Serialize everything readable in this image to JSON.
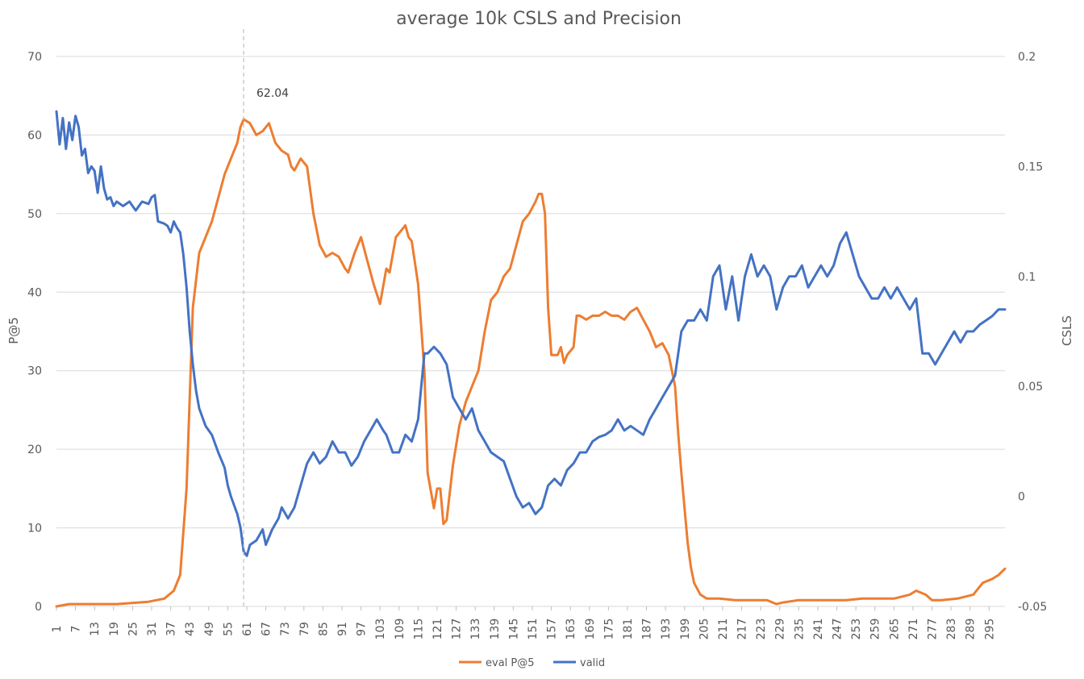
{
  "chart_data": {
    "type": "line",
    "title": "average 10k CSLS and Precision",
    "ylabel_left": "P@5",
    "ylabel_right": "CSLS",
    "xlabel": "",
    "ylim_left": [
      0,
      70
    ],
    "ylim_right": [
      -0.05,
      0.2
    ],
    "yticks_left": [
      0,
      10,
      20,
      30,
      40,
      50,
      60,
      70
    ],
    "yticks_right": [
      "-0.05",
      "0",
      "0.05",
      "0.1",
      "0.15",
      "0.2"
    ],
    "yticks_right_values": [
      -0.05,
      0,
      0.05,
      0.1,
      0.15,
      0.2
    ],
    "x_range": [
      1,
      300
    ],
    "xticks": [
      "1",
      "7",
      "13",
      "19",
      "25",
      "31",
      "37",
      "43",
      "49",
      "55",
      "61",
      "67",
      "73",
      "79",
      "85",
      "91",
      "97",
      "103",
      "109",
      "115",
      "121",
      "127",
      "133",
      "139",
      "145",
      "151",
      "157",
      "163",
      "169",
      "175",
      "181",
      "187",
      "193",
      "199",
      "205",
      "211",
      "217",
      "223",
      "229",
      "235",
      "241",
      "247",
      "253",
      "259",
      "265",
      "271",
      "277",
      "283",
      "289",
      "295"
    ],
    "gridlines": true,
    "legend_position": "bottom",
    "annotation": {
      "text": "62.04",
      "x": 60
    },
    "series": [
      {
        "name": "eval P@5",
        "axis": "left",
        "color": "#ED7D31",
        "points": [
          [
            1,
            0
          ],
          [
            5,
            0.3
          ],
          [
            10,
            0.3
          ],
          [
            20,
            0.3
          ],
          [
            30,
            0.6
          ],
          [
            35,
            1
          ],
          [
            38,
            2
          ],
          [
            40,
            4
          ],
          [
            42,
            15
          ],
          [
            44,
            38
          ],
          [
            46,
            45
          ],
          [
            48,
            47
          ],
          [
            50,
            49
          ],
          [
            52,
            52
          ],
          [
            54,
            55
          ],
          [
            56,
            57
          ],
          [
            58,
            59
          ],
          [
            59,
            61
          ],
          [
            60,
            62
          ],
          [
            62,
            61.5
          ],
          [
            64,
            60
          ],
          [
            66,
            60.5
          ],
          [
            68,
            61.5
          ],
          [
            70,
            59
          ],
          [
            72,
            58
          ],
          [
            74,
            57.5
          ],
          [
            75,
            56
          ],
          [
            76,
            55.5
          ],
          [
            78,
            57
          ],
          [
            80,
            56
          ],
          [
            82,
            50
          ],
          [
            84,
            46
          ],
          [
            86,
            44.5
          ],
          [
            88,
            45
          ],
          [
            90,
            44.5
          ],
          [
            92,
            43
          ],
          [
            93,
            42.5
          ],
          [
            95,
            45
          ],
          [
            97,
            47
          ],
          [
            99,
            44
          ],
          [
            101,
            41
          ],
          [
            103,
            38.5
          ],
          [
            105,
            43
          ],
          [
            106,
            42.5
          ],
          [
            108,
            47
          ],
          [
            110,
            48
          ],
          [
            111,
            48.5
          ],
          [
            112,
            47
          ],
          [
            113,
            46.5
          ],
          [
            115,
            41
          ],
          [
            117,
            30
          ],
          [
            118,
            17
          ],
          [
            120,
            12.5
          ],
          [
            121,
            15
          ],
          [
            122,
            15
          ],
          [
            123,
            10.5
          ],
          [
            124,
            11
          ],
          [
            126,
            18
          ],
          [
            128,
            23
          ],
          [
            130,
            26
          ],
          [
            132,
            28
          ],
          [
            134,
            30
          ],
          [
            136,
            35
          ],
          [
            138,
            39
          ],
          [
            140,
            40
          ],
          [
            142,
            42
          ],
          [
            144,
            43
          ],
          [
            146,
            46
          ],
          [
            148,
            49
          ],
          [
            150,
            50
          ],
          [
            152,
            51.5
          ],
          [
            153,
            52.5
          ],
          [
            154,
            52.5
          ],
          [
            155,
            50
          ],
          [
            156,
            38
          ],
          [
            157,
            32
          ],
          [
            159,
            32
          ],
          [
            160,
            33
          ],
          [
            161,
            31
          ],
          [
            162,
            32
          ],
          [
            164,
            33
          ],
          [
            165,
            37
          ],
          [
            166,
            37
          ],
          [
            168,
            36.5
          ],
          [
            170,
            37
          ],
          [
            172,
            37
          ],
          [
            174,
            37.5
          ],
          [
            176,
            37
          ],
          [
            178,
            37
          ],
          [
            180,
            36.5
          ],
          [
            182,
            37.5
          ],
          [
            184,
            38
          ],
          [
            186,
            36.5
          ],
          [
            188,
            35
          ],
          [
            190,
            33
          ],
          [
            192,
            33.5
          ],
          [
            194,
            32
          ],
          [
            196,
            28
          ],
          [
            197,
            22
          ],
          [
            198,
            17
          ],
          [
            200,
            8
          ],
          [
            201,
            5
          ],
          [
            202,
            3
          ],
          [
            204,
            1.5
          ],
          [
            206,
            1
          ],
          [
            210,
            1
          ],
          [
            215,
            0.8
          ],
          [
            220,
            0.8
          ],
          [
            225,
            0.8
          ],
          [
            228,
            0.3
          ],
          [
            230,
            0.5
          ],
          [
            235,
            0.8
          ],
          [
            240,
            0.8
          ],
          [
            245,
            0.8
          ],
          [
            250,
            0.8
          ],
          [
            255,
            1
          ],
          [
            260,
            1
          ],
          [
            265,
            1
          ],
          [
            270,
            1.5
          ],
          [
            272,
            2
          ],
          [
            275,
            1.5
          ],
          [
            277,
            0.8
          ],
          [
            280,
            0.8
          ],
          [
            285,
            1
          ],
          [
            290,
            1.5
          ],
          [
            293,
            3
          ],
          [
            296,
            3.5
          ],
          [
            298,
            4
          ],
          [
            300,
            4.8
          ]
        ]
      },
      {
        "name": "valid",
        "axis": "right",
        "color": "#4472C4",
        "points": [
          [
            1,
            0.175
          ],
          [
            2,
            0.16
          ],
          [
            3,
            0.172
          ],
          [
            4,
            0.158
          ],
          [
            5,
            0.17
          ],
          [
            6,
            0.162
          ],
          [
            7,
            0.173
          ],
          [
            8,
            0.168
          ],
          [
            9,
            0.155
          ],
          [
            10,
            0.158
          ],
          [
            11,
            0.147
          ],
          [
            12,
            0.15
          ],
          [
            13,
            0.148
          ],
          [
            14,
            0.138
          ],
          [
            15,
            0.15
          ],
          [
            16,
            0.14
          ],
          [
            17,
            0.135
          ],
          [
            18,
            0.136
          ],
          [
            19,
            0.132
          ],
          [
            20,
            0.134
          ],
          [
            22,
            0.132
          ],
          [
            24,
            0.134
          ],
          [
            26,
            0.13
          ],
          [
            28,
            0.134
          ],
          [
            30,
            0.133
          ],
          [
            31,
            0.136
          ],
          [
            32,
            0.137
          ],
          [
            33,
            0.125
          ],
          [
            35,
            0.124
          ],
          [
            36,
            0.123
          ],
          [
            37,
            0.12
          ],
          [
            38,
            0.125
          ],
          [
            39,
            0.122
          ],
          [
            40,
            0.12
          ],
          [
            41,
            0.11
          ],
          [
            42,
            0.095
          ],
          [
            43,
            0.075
          ],
          [
            44,
            0.06
          ],
          [
            45,
            0.048
          ],
          [
            46,
            0.04
          ],
          [
            48,
            0.032
          ],
          [
            50,
            0.028
          ],
          [
            52,
            0.02
          ],
          [
            54,
            0.013
          ],
          [
            55,
            0.005
          ],
          [
            56,
            0
          ],
          [
            58,
            -0.008
          ],
          [
            59,
            -0.014
          ],
          [
            60,
            -0.025
          ],
          [
            61,
            -0.027
          ],
          [
            62,
            -0.022
          ],
          [
            64,
            -0.02
          ],
          [
            66,
            -0.015
          ],
          [
            67,
            -0.022
          ],
          [
            69,
            -0.015
          ],
          [
            71,
            -0.01
          ],
          [
            72,
            -0.005
          ],
          [
            74,
            -0.01
          ],
          [
            76,
            -0.005
          ],
          [
            78,
            0.005
          ],
          [
            80,
            0.015
          ],
          [
            82,
            0.02
          ],
          [
            84,
            0.015
          ],
          [
            86,
            0.018
          ],
          [
            88,
            0.025
          ],
          [
            90,
            0.02
          ],
          [
            92,
            0.02
          ],
          [
            94,
            0.014
          ],
          [
            96,
            0.018
          ],
          [
            98,
            0.025
          ],
          [
            100,
            0.03
          ],
          [
            102,
            0.035
          ],
          [
            104,
            0.03
          ],
          [
            105,
            0.028
          ],
          [
            107,
            0.02
          ],
          [
            109,
            0.02
          ],
          [
            111,
            0.028
          ],
          [
            113,
            0.025
          ],
          [
            115,
            0.035
          ],
          [
            117,
            0.065
          ],
          [
            118,
            0.065
          ],
          [
            120,
            0.068
          ],
          [
            122,
            0.065
          ],
          [
            124,
            0.06
          ],
          [
            126,
            0.045
          ],
          [
            128,
            0.04
          ],
          [
            130,
            0.035
          ],
          [
            132,
            0.04
          ],
          [
            134,
            0.03
          ],
          [
            136,
            0.025
          ],
          [
            138,
            0.02
          ],
          [
            140,
            0.018
          ],
          [
            142,
            0.016
          ],
          [
            144,
            0.008
          ],
          [
            146,
            0.0
          ],
          [
            148,
            -0.005
          ],
          [
            150,
            -0.003
          ],
          [
            152,
            -0.008
          ],
          [
            154,
            -0.005
          ],
          [
            156,
            0.005
          ],
          [
            158,
            0.008
          ],
          [
            160,
            0.005
          ],
          [
            162,
            0.012
          ],
          [
            164,
            0.015
          ],
          [
            166,
            0.02
          ],
          [
            168,
            0.02
          ],
          [
            170,
            0.025
          ],
          [
            172,
            0.027
          ],
          [
            174,
            0.028
          ],
          [
            176,
            0.03
          ],
          [
            178,
            0.035
          ],
          [
            180,
            0.03
          ],
          [
            182,
            0.032
          ],
          [
            184,
            0.03
          ],
          [
            186,
            0.028
          ],
          [
            188,
            0.035
          ],
          [
            190,
            0.04
          ],
          [
            192,
            0.045
          ],
          [
            194,
            0.05
          ],
          [
            196,
            0.055
          ],
          [
            198,
            0.075
          ],
          [
            200,
            0.08
          ],
          [
            202,
            0.08
          ],
          [
            204,
            0.085
          ],
          [
            206,
            0.08
          ],
          [
            208,
            0.1
          ],
          [
            210,
            0.105
          ],
          [
            212,
            0.085
          ],
          [
            214,
            0.1
          ],
          [
            216,
            0.08
          ],
          [
            218,
            0.1
          ],
          [
            220,
            0.11
          ],
          [
            222,
            0.1
          ],
          [
            224,
            0.105
          ],
          [
            226,
            0.1
          ],
          [
            228,
            0.085
          ],
          [
            230,
            0.095
          ],
          [
            232,
            0.1
          ],
          [
            234,
            0.1
          ],
          [
            236,
            0.105
          ],
          [
            238,
            0.095
          ],
          [
            240,
            0.1
          ],
          [
            242,
            0.105
          ],
          [
            244,
            0.1
          ],
          [
            246,
            0.105
          ],
          [
            248,
            0.115
          ],
          [
            250,
            0.12
          ],
          [
            252,
            0.11
          ],
          [
            254,
            0.1
          ],
          [
            256,
            0.095
          ],
          [
            258,
            0.09
          ],
          [
            260,
            0.09
          ],
          [
            262,
            0.095
          ],
          [
            264,
            0.09
          ],
          [
            266,
            0.095
          ],
          [
            268,
            0.09
          ],
          [
            270,
            0.085
          ],
          [
            272,
            0.09
          ],
          [
            274,
            0.065
          ],
          [
            276,
            0.065
          ],
          [
            278,
            0.06
          ],
          [
            280,
            0.065
          ],
          [
            282,
            0.07
          ],
          [
            284,
            0.075
          ],
          [
            286,
            0.07
          ],
          [
            288,
            0.075
          ],
          [
            290,
            0.075
          ],
          [
            292,
            0.078
          ],
          [
            294,
            0.08
          ],
          [
            296,
            0.082
          ],
          [
            298,
            0.085
          ],
          [
            300,
            0.085
          ]
        ]
      }
    ]
  }
}
